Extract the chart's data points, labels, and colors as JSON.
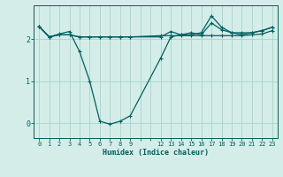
{
  "xlabel": "Humidex (Indice chaleur)",
  "bg_color": "#d4ede8",
  "line_color": "#006060",
  "grid_color": "#aad4cc",
  "xlim": [
    -0.5,
    23.5
  ],
  "ylim": [
    -0.35,
    2.8
  ],
  "yticks": [
    0,
    1,
    2
  ],
  "all_xticks": [
    0,
    1,
    2,
    3,
    4,
    5,
    6,
    7,
    8,
    9,
    10,
    11,
    12,
    13,
    14,
    15,
    16,
    17,
    18,
    19,
    20,
    21,
    22,
    23
  ],
  "xlabel_show": [
    0,
    1,
    2,
    3,
    4,
    5,
    6,
    7,
    8,
    9,
    12,
    13,
    14,
    15,
    16,
    17,
    18,
    19,
    20,
    21,
    22,
    23
  ],
  "line1_x": [
    0,
    1,
    2,
    3,
    4,
    5,
    6,
    7,
    8,
    9,
    12,
    13,
    14,
    15,
    16,
    17,
    18,
    19,
    20,
    21,
    22,
    23
  ],
  "line1_y": [
    2.3,
    2.05,
    2.1,
    2.1,
    2.05,
    2.05,
    2.05,
    2.05,
    2.05,
    2.05,
    2.08,
    2.08,
    2.08,
    2.08,
    2.08,
    2.08,
    2.08,
    2.08,
    2.08,
    2.1,
    2.12,
    2.2
  ],
  "line2_x": [
    0,
    1,
    2,
    3,
    4,
    5,
    6,
    7,
    8,
    9,
    12,
    13,
    14,
    15,
    16,
    17,
    18,
    19,
    20,
    21,
    22,
    23
  ],
  "line2_y": [
    2.3,
    2.05,
    2.12,
    2.18,
    1.7,
    1.0,
    0.05,
    -0.02,
    0.05,
    0.18,
    1.55,
    2.05,
    2.1,
    2.15,
    2.1,
    2.38,
    2.22,
    2.15,
    2.1,
    2.15,
    2.2,
    2.28
  ],
  "line3_x": [
    0,
    1,
    2,
    3,
    4,
    5,
    6,
    7,
    8,
    9,
    12,
    13,
    14,
    15,
    16,
    17,
    18,
    19,
    20,
    21,
    22,
    23
  ],
  "line3_y": [
    2.3,
    2.05,
    2.1,
    2.1,
    2.05,
    2.05,
    2.05,
    2.05,
    2.05,
    2.05,
    2.05,
    2.18,
    2.1,
    2.1,
    2.15,
    2.55,
    2.28,
    2.15,
    2.15,
    2.15,
    2.2,
    2.28
  ]
}
